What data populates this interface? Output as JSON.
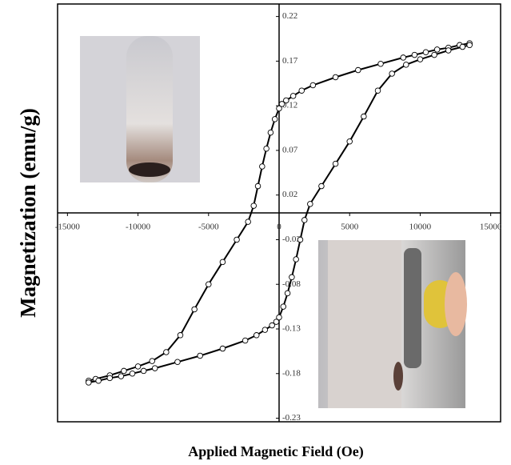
{
  "chart_data": {
    "type": "line",
    "x_label": "Applied Magnetic Field (Oe)",
    "y_label": "Magnetization (emu/g)",
    "xlim": [
      -15700,
      15700
    ],
    "ylim": [
      -0.234,
      0.234
    ],
    "xticks": [
      -15000,
      -10000,
      -5000,
      0,
      5000,
      10000,
      15000
    ],
    "yticks": [
      0.22,
      0.17,
      0.12,
      0.07,
      0.02,
      -0.03,
      -0.08,
      -0.13,
      -0.18,
      -0.23
    ],
    "series": [
      {
        "color": "#000000",
        "x": [
          13500,
          12800,
          12000,
          11200,
          10400,
          9600,
          8800,
          7200,
          5600,
          4000,
          2400,
          1600,
          1000,
          500,
          200,
          0,
          -300,
          -600,
          -900,
          -1200,
          -1500,
          -1800,
          -2200,
          -3000,
          -4000,
          -5000,
          -6000,
          -7000,
          -8000,
          -9000,
          -10000,
          -11000,
          -12000,
          -13000,
          -13500
        ],
        "values": [
          0.19,
          0.188,
          0.185,
          0.183,
          0.18,
          0.177,
          0.174,
          0.167,
          0.16,
          0.152,
          0.143,
          0.137,
          0.131,
          0.126,
          0.122,
          0.117,
          0.105,
          0.09,
          0.072,
          0.052,
          0.03,
          0.008,
          -0.01,
          -0.03,
          -0.055,
          -0.08,
          -0.108,
          -0.137,
          -0.156,
          -0.166,
          -0.172,
          -0.177,
          -0.182,
          -0.186,
          -0.188
        ]
      },
      {
        "color": "#000000",
        "x": [
          -13500,
          -12800,
          -12000,
          -11200,
          -10400,
          -9600,
          -8800,
          -7200,
          -5600,
          -4000,
          -2400,
          -1600,
          -1000,
          -500,
          -200,
          0,
          300,
          600,
          900,
          1200,
          1500,
          1800,
          2200,
          3000,
          4000,
          5000,
          6000,
          7000,
          8000,
          9000,
          10000,
          11000,
          12000,
          13000,
          13500
        ],
        "values": [
          -0.19,
          -0.188,
          -0.185,
          -0.183,
          -0.18,
          -0.177,
          -0.174,
          -0.167,
          -0.16,
          -0.152,
          -0.143,
          -0.137,
          -0.131,
          -0.126,
          -0.122,
          -0.117,
          -0.105,
          -0.09,
          -0.072,
          -0.052,
          -0.03,
          -0.008,
          0.01,
          0.03,
          0.055,
          0.08,
          0.108,
          0.137,
          0.156,
          0.166,
          0.172,
          0.177,
          0.182,
          0.186,
          0.188
        ]
      }
    ]
  }
}
